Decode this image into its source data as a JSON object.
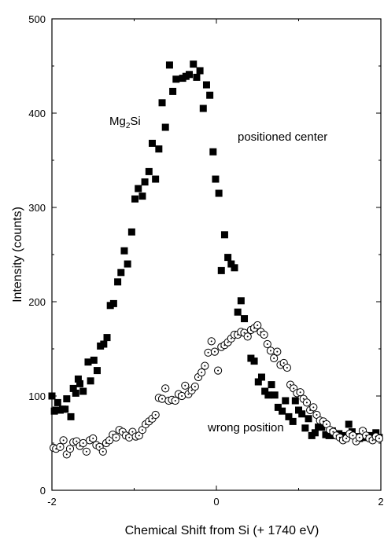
{
  "chart_data": {
    "type": "scatter",
    "title": "",
    "xlabel": "Chemical Shift from Si (+ 1740 eV)",
    "ylabel": "Intensity (counts)",
    "xlim": [
      -2,
      2
    ],
    "ylim": [
      0,
      500
    ],
    "xticks": [
      "-2",
      "0",
      "2"
    ],
    "yticks": [
      "0",
      "100",
      "200",
      "300",
      "400",
      "500"
    ],
    "grid": false,
    "annotations": {
      "species_main": "Mg",
      "species_sub": "2",
      "species_end": "Si",
      "positioned": "positioned center",
      "wrong": "wrong position"
    },
    "series": [
      {
        "marker": "filled-square",
        "x": [
          -2.0,
          -1.97,
          -1.95,
          -1.93,
          -1.9,
          -1.87,
          -1.84,
          -1.82,
          -1.77,
          -1.74,
          -1.71,
          -1.68,
          -1.66,
          -1.62,
          -1.56,
          -1.53,
          -1.49,
          -1.45,
          -1.41,
          -1.37,
          -1.33,
          -1.29,
          -1.25,
          -1.2,
          -1.16,
          -1.12,
          -1.08,
          -1.03,
          -0.99,
          -0.95,
          -0.9,
          -0.87,
          -0.82,
          -0.78,
          -0.74,
          -0.7,
          -0.66,
          -0.62,
          -0.57,
          -0.53,
          -0.49,
          -0.41,
          -0.37,
          -0.33,
          -0.28,
          -0.24,
          -0.2,
          -0.16,
          -0.12,
          -0.08,
          -0.04,
          -0.01,
          0.03,
          0.06,
          0.1,
          0.14,
          0.18,
          0.22,
          0.26,
          0.3,
          0.34,
          0.38,
          0.42,
          0.46,
          0.51,
          0.55,
          0.59,
          0.63,
          0.67,
          0.71,
          0.75,
          0.8,
          0.84,
          0.88,
          0.93,
          0.96,
          1.0,
          1.04,
          1.08,
          1.12,
          1.16,
          1.2,
          1.24,
          1.28,
          1.33,
          1.37,
          1.41,
          1.45,
          1.49,
          1.53,
          1.57,
          1.61,
          1.65,
          1.7,
          1.74,
          1.78,
          1.82,
          1.86,
          1.9,
          1.94,
          1.98
        ],
        "y": [
          100,
          84,
          85,
          93,
          85,
          86,
          86,
          97,
          78,
          108,
          103,
          118,
          113,
          105,
          136,
          116,
          138,
          127,
          153,
          155,
          162,
          196,
          198,
          221,
          231,
          254,
          240,
          274,
          309,
          320,
          312,
          327,
          338,
          368,
          330,
          362,
          411,
          385,
          451,
          423,
          436,
          437,
          439,
          441,
          452,
          438,
          445,
          405,
          430,
          419,
          359,
          330,
          315,
          233,
          271,
          247,
          240,
          236,
          189,
          201,
          182,
          165,
          140,
          137,
          115,
          120,
          105,
          101,
          112,
          101,
          88,
          84,
          95,
          78,
          73,
          95,
          85,
          81,
          66,
          76,
          58,
          61,
          67,
          67,
          59,
          58,
          63,
          58,
          60,
          58,
          55,
          70,
          62,
          57,
          55,
          62,
          56,
          58,
          56,
          61,
          56
        ]
      },
      {
        "marker": "open-circle-dot",
        "x": [
          -1.98,
          -1.95,
          -1.9,
          -1.86,
          -1.82,
          -1.78,
          -1.74,
          -1.7,
          -1.66,
          -1.62,
          -1.58,
          -1.54,
          -1.5,
          -1.46,
          -1.42,
          -1.38,
          -1.34,
          -1.3,
          -1.26,
          -1.22,
          -1.18,
          -1.14,
          -1.1,
          -1.06,
          -1.02,
          -0.98,
          -0.94,
          -0.9,
          -0.86,
          -0.82,
          -0.78,
          -0.74,
          -0.7,
          -0.66,
          -0.62,
          -0.58,
          -0.54,
          -0.5,
          -0.46,
          -0.42,
          -0.38,
          -0.34,
          -0.3,
          -0.26,
          -0.22,
          -0.18,
          -0.14,
          -0.1,
          -0.06,
          -0.02,
          0.02,
          0.06,
          0.1,
          0.14,
          0.18,
          0.22,
          0.26,
          0.3,
          0.34,
          0.38,
          0.42,
          0.46,
          0.5,
          0.54,
          0.58,
          0.62,
          0.66,
          0.7,
          0.74,
          0.78,
          0.82,
          0.86,
          0.9,
          0.94,
          0.98,
          1.02,
          1.06,
          1.1,
          1.14,
          1.18,
          1.22,
          1.26,
          1.3,
          1.34,
          1.38,
          1.42,
          1.46,
          1.5,
          1.54,
          1.58,
          1.62,
          1.66,
          1.7,
          1.74,
          1.78,
          1.82,
          1.86,
          1.9,
          1.94,
          1.98
        ],
        "y": [
          45,
          44,
          46,
          53,
          38,
          44,
          51,
          52,
          47,
          50,
          41,
          53,
          55,
          48,
          46,
          41,
          50,
          53,
          59,
          56,
          64,
          62,
          58,
          56,
          62,
          57,
          58,
          64,
          70,
          73,
          76,
          80,
          98,
          97,
          108,
          95,
          96,
          95,
          102,
          100,
          111,
          102,
          106,
          110,
          120,
          125,
          132,
          146,
          158,
          147,
          127,
          152,
          154,
          157,
          161,
          165,
          165,
          168,
          167,
          163,
          170,
          172,
          175,
          168,
          165,
          155,
          148,
          140,
          147,
          133,
          135,
          130,
          112,
          108,
          103,
          104,
          97,
          93,
          85,
          88,
          80,
          74,
          73,
          70,
          64,
          62,
          58,
          56,
          53,
          55,
          60,
          58,
          52,
          56,
          63,
          58,
          55,
          53,
          57,
          55
        ]
      }
    ]
  }
}
